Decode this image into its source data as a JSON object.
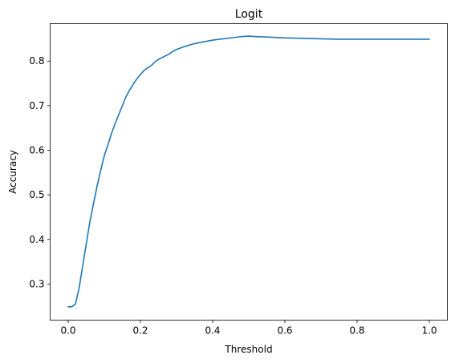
{
  "chart_data": {
    "type": "line",
    "title": "Logit",
    "xlabel": "Threshold",
    "ylabel": "Accuracy",
    "xlim": [
      -0.05,
      1.05
    ],
    "ylim": [
      0.219,
      0.884
    ],
    "xticks": [
      0.0,
      0.2,
      0.4,
      0.6,
      0.8,
      1.0
    ],
    "xtick_labels": [
      "0.0",
      "0.2",
      "0.4",
      "0.6",
      "0.8",
      "1.0"
    ],
    "yticks": [
      0.3,
      0.4,
      0.5,
      0.6,
      0.7,
      0.8
    ],
    "ytick_labels": [
      "0.3",
      "0.4",
      "0.5",
      "0.6",
      "0.7",
      "0.8"
    ],
    "grid": false,
    "series_color": "#1f77b4",
    "series": [
      {
        "x": [
          0.0,
          0.01,
          0.02,
          0.03,
          0.04,
          0.05,
          0.06,
          0.07,
          0.08,
          0.09,
          0.1,
          0.11,
          0.12,
          0.13,
          0.14,
          0.15,
          0.16,
          0.17,
          0.18,
          0.19,
          0.2,
          0.21,
          0.22,
          0.23,
          0.24,
          0.25,
          0.26,
          0.27,
          0.28,
          0.29,
          0.3,
          0.32,
          0.34,
          0.36,
          0.38,
          0.4,
          0.42,
          0.44,
          0.46,
          0.48,
          0.5,
          0.52,
          0.55,
          0.6,
          0.65,
          0.7,
          0.75,
          0.8,
          0.85,
          0.9,
          0.95,
          1.0
        ],
        "y": [
          0.249,
          0.249,
          0.255,
          0.29,
          0.34,
          0.39,
          0.44,
          0.48,
          0.52,
          0.555,
          0.588,
          0.612,
          0.638,
          0.66,
          0.68,
          0.7,
          0.72,
          0.735,
          0.748,
          0.76,
          0.77,
          0.779,
          0.785,
          0.79,
          0.798,
          0.804,
          0.808,
          0.812,
          0.816,
          0.822,
          0.826,
          0.832,
          0.837,
          0.841,
          0.844,
          0.847,
          0.849,
          0.851,
          0.853,
          0.855,
          0.856,
          0.855,
          0.854,
          0.852,
          0.851,
          0.85,
          0.849,
          0.849,
          0.849,
          0.849,
          0.849,
          0.849
        ]
      }
    ]
  }
}
